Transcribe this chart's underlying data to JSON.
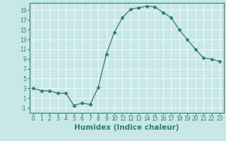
{
  "x": [
    0,
    1,
    2,
    3,
    4,
    5,
    6,
    7,
    8,
    9,
    10,
    11,
    12,
    13,
    14,
    15,
    16,
    17,
    18,
    19,
    20,
    21,
    22,
    23
  ],
  "y": [
    3,
    2.5,
    2.5,
    2,
    2,
    -0.5,
    0,
    -0.3,
    3.2,
    10,
    14.5,
    17.5,
    19.2,
    19.5,
    19.8,
    19.7,
    18.5,
    17.5,
    15,
    13,
    11,
    9.2,
    9,
    8.5
  ],
  "line_color": "#2e7d6e",
  "marker": "D",
  "marker_size": 2.5,
  "bg_color": "#c8e8e8",
  "grid_color": "#ffffff",
  "xlabel": "Humidex (Indice chaleur)",
  "xlabel_fontsize": 7.5,
  "xlim": [
    -0.5,
    23.5
  ],
  "ylim": [
    -2,
    20.5
  ],
  "yticks": [
    -1,
    1,
    3,
    5,
    7,
    9,
    11,
    13,
    15,
    17,
    19
  ],
  "xticks": [
    0,
    1,
    2,
    3,
    4,
    5,
    6,
    7,
    8,
    9,
    10,
    11,
    12,
    13,
    14,
    15,
    16,
    17,
    18,
    19,
    20,
    21,
    22,
    23
  ],
  "tick_fontsize": 5.5
}
